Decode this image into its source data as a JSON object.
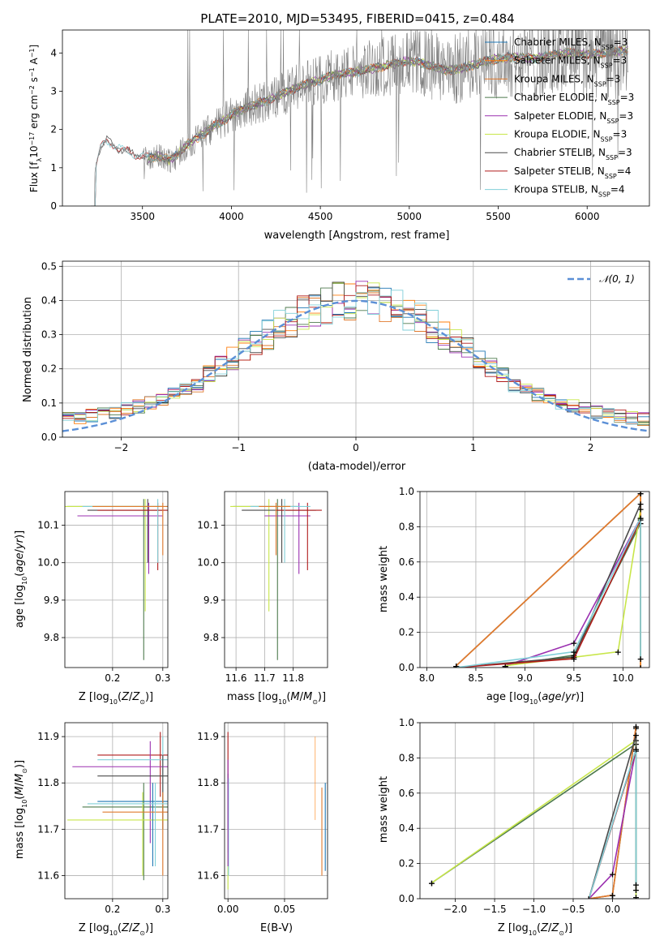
{
  "figure_title": "PLATE=2010, MJD=53495, FIBERID=0415, z=0.484",
  "colors": {
    "chabrier_miles": "#1f77b4",
    "salpeter_miles": "#ff7f0e",
    "kroupa_miles": "#e07a2e",
    "chabrier_elodie": "#4d7a4d",
    "salpeter_elodie": "#9b30b0",
    "kroupa_elodie": "#c8e64a",
    "chabrier_stelib": "#4a4a4a",
    "salpeter_stelib": "#b01c1c",
    "kroupa_stelib": "#80cfd8",
    "data_spectrum": "#808080",
    "normal": "#5b8fd6"
  },
  "chart_data": [
    {
      "id": "spectrum",
      "type": "line",
      "xlabel": "wavelength [Angstrom, rest frame]",
      "ylabel": "Flux [f$_\\lambda$10$^{-17}$ erg cm$^{-2}$ s$^{-1}$ A$^{-1}$]",
      "ylabel_parts": [
        "Flux [f",
        "λ",
        "10",
        "−17",
        " erg cm",
        "−2",
        " s",
        "−1",
        " A",
        "−1",
        "]"
      ],
      "xlim": [
        3050,
        6350
      ],
      "ylim": [
        0,
        4.6
      ],
      "xticks": [
        3500,
        4000,
        4500,
        5000,
        5500,
        6000
      ],
      "yticks": [
        0,
        1,
        2,
        3,
        4
      ],
      "legend_position": "top-right",
      "legend": [
        {
          "label": "Chabrier MILES, N",
          "sub": "SSP",
          "tail": "=3",
          "color_key": "chabrier_miles"
        },
        {
          "label": "Salpeter MILES, N",
          "sub": "SSP",
          "tail": "=3",
          "color_key": "salpeter_miles"
        },
        {
          "label": "Kroupa MILES, N",
          "sub": "SSP",
          "tail": "=3",
          "color_key": "kroupa_miles"
        },
        {
          "label": "Chabrier ELODIE, N",
          "sub": "SSP",
          "tail": "=3",
          "color_key": "chabrier_elodie"
        },
        {
          "label": "Salpeter ELODIE, N",
          "sub": "SSP",
          "tail": "=3",
          "color_key": "salpeter_elodie"
        },
        {
          "label": "Kroupa ELODIE, N",
          "sub": "SSP",
          "tail": "=3",
          "color_key": "kroupa_elodie"
        },
        {
          "label": "Chabrier STELIB, N",
          "sub": "SSP",
          "tail": "=3",
          "color_key": "chabrier_stelib"
        },
        {
          "label": "Salpeter STELIB, N",
          "sub": "SSP",
          "tail": "=4",
          "color_key": "salpeter_stelib"
        },
        {
          "label": "Kroupa STELIB, N",
          "sub": "SSP",
          "tail": "=4",
          "color_key": "kroupa_stelib"
        }
      ],
      "continuum": {
        "x": [
          3210,
          3235,
          3260,
          3300,
          3350,
          3400,
          3450,
          3500,
          3550,
          3600,
          3650,
          3700,
          3750,
          3800,
          3850,
          3900,
          3950,
          4000,
          4100,
          4200,
          4300,
          4400,
          4500,
          4600,
          4700,
          4800,
          4900,
          5000,
          5100,
          5200,
          5300,
          5400,
          5500,
          5600,
          5700,
          5800,
          5900,
          6000,
          6100,
          6200
        ],
        "y": [
          0,
          1.0,
          1.5,
          1.7,
          1.55,
          1.45,
          1.35,
          1.3,
          1.25,
          1.3,
          1.2,
          1.35,
          1.6,
          1.75,
          1.9,
          2.1,
          2.2,
          2.4,
          2.6,
          2.75,
          2.95,
          3.15,
          3.3,
          3.45,
          3.5,
          3.6,
          3.7,
          3.8,
          3.7,
          3.55,
          3.6,
          3.75,
          3.85,
          3.9,
          3.85,
          3.95,
          4.0,
          3.95,
          4.0,
          4.05
        ]
      }
    },
    {
      "id": "residuals",
      "type": "histogram",
      "xlabel": "(data-model)/error",
      "ylabel": "Normed distribution",
      "xlim": [
        -2.5,
        2.5
      ],
      "ylim": [
        0,
        0.515
      ],
      "xticks": [
        -2,
        -1,
        0,
        1,
        2
      ],
      "yticks": [
        0.0,
        0.1,
        0.2,
        0.3,
        0.4,
        0.5
      ],
      "grid": true,
      "legend_position": "top-right",
      "legend": [
        {
          "label": "𝒩(0, 1)",
          "color_key": "normal",
          "style": "dashed"
        }
      ],
      "bins": 50,
      "reference": {
        "mean": 0,
        "sigma": 1
      }
    },
    {
      "id": "age_vs_Z",
      "type": "scatter",
      "xlabel_parts": [
        "Z [log",
        "10",
        "(",
        "Z",
        "/",
        "Z",
        "⊙",
        ")]"
      ],
      "ylabel_parts": [
        "age  [log",
        "10",
        "(",
        "age",
        "/",
        "yr",
        ")]"
      ],
      "xlim": [
        0.105,
        0.31
      ],
      "ylim": [
        9.72,
        10.19
      ],
      "xticks": [
        0.2,
        0.3
      ],
      "yticks": [
        9.8,
        9.9,
        10.0,
        10.1
      ],
      "grid": true,
      "points": [
        {
          "c": "chabrier_miles",
          "x": 0.27,
          "y": 10.15
        },
        {
          "c": "salpeter_miles",
          "x": 0.275,
          "y": 10.14
        },
        {
          "c": "kroupa_miles",
          "x": 0.28,
          "y": 10.15
        },
        {
          "c": "chabrier_elodie",
          "x": 0.265,
          "y": 10.15
        },
        {
          "c": "salpeter_elodie",
          "x": 0.27,
          "y": 10.13
        },
        {
          "c": "kroupa_elodie",
          "x": 0.26,
          "y": 10.15
        },
        {
          "c": "chabrier_stelib",
          "x": 0.29,
          "y": 10.14
        },
        {
          "c": "salpeter_stelib",
          "x": 0.3,
          "y": 10.13
        },
        {
          "c": "kroupa_stelib",
          "x": 0.295,
          "y": 10.15
        }
      ]
    },
    {
      "id": "age_vs_mass",
      "type": "scatter",
      "xlabel_parts": [
        "mass [log",
        "10",
        "(",
        "M",
        "/",
        "M",
        "⊙",
        ")]"
      ],
      "xlim": [
        11.56,
        11.92
      ],
      "ylim": [
        9.72,
        10.19
      ],
      "xticks": [
        11.6,
        11.7,
        11.8
      ],
      "yticks": [
        9.8,
        9.9,
        10.0,
        10.1
      ],
      "grid": true
    },
    {
      "id": "mass_weight_vs_age",
      "type": "line",
      "xlabel_parts": [
        "age  [log",
        "10",
        "(",
        "age",
        "/",
        "yr",
        ")]"
      ],
      "ylabel": "mass weight",
      "xlim": [
        7.93,
        10.27
      ],
      "ylim": [
        0,
        1
      ],
      "xticks": [
        8.0,
        8.5,
        9.0,
        9.5,
        10.0
      ],
      "yticks": [
        0.0,
        0.2,
        0.4,
        0.6,
        0.8,
        1.0
      ],
      "grid": true,
      "series": [
        {
          "c": "chabrier_miles",
          "x": [
            8.3,
            10.18,
            10.18
          ],
          "y": [
            0.01,
            0.99,
            0.0
          ]
        },
        {
          "c": "salpeter_miles",
          "x": [
            8.3,
            10.18,
            10.18
          ],
          "y": [
            0.01,
            0.99,
            0.0
          ]
        },
        {
          "c": "kroupa_miles",
          "x": [
            8.3,
            10.18
          ],
          "y": [
            0.01,
            0.99
          ]
        },
        {
          "c": "chabrier_elodie",
          "x": [
            8.8,
            9.5,
            10.18
          ],
          "y": [
            0.01,
            0.07,
            0.82
          ]
        },
        {
          "c": "salpeter_elodie",
          "x": [
            8.8,
            9.5,
            10.18
          ],
          "y": [
            0.01,
            0.14,
            0.85
          ]
        },
        {
          "c": "kroupa_elodie",
          "x": [
            8.8,
            9.95,
            10.18
          ],
          "y": [
            0.01,
            0.09,
            0.9
          ]
        },
        {
          "c": "chabrier_stelib",
          "x": [
            8.3,
            9.5,
            10.18
          ],
          "y": [
            0.0,
            0.06,
            0.93
          ]
        },
        {
          "c": "salpeter_stelib",
          "x": [
            8.3,
            9.5,
            10.18
          ],
          "y": [
            0.0,
            0.05,
            0.84
          ]
        },
        {
          "c": "kroupa_stelib",
          "x": [
            8.3,
            9.5,
            10.18,
            10.18
          ],
          "y": [
            0.0,
            0.09,
            0.85,
            0.05
          ]
        }
      ]
    },
    {
      "id": "mass_vs_Z",
      "type": "scatter",
      "xlabel_parts": [
        "Z [log",
        "10",
        "(",
        "Z",
        "/",
        "Z",
        "⊙",
        ")]"
      ],
      "ylabel_parts": [
        "mass [log",
        "10",
        "(",
        "M",
        "/",
        "M",
        "⊙",
        ")]"
      ],
      "xlim": [
        0.105,
        0.31
      ],
      "ylim": [
        11.55,
        11.93
      ],
      "xticks": [
        0.2,
        0.3
      ],
      "yticks": [
        11.6,
        11.7,
        11.8,
        11.9
      ],
      "grid": true
    },
    {
      "id": "mass_vs_ebv",
      "type": "scatter",
      "xlabel": "E(B-V)",
      "xlim": [
        -0.003,
        0.088
      ],
      "ylim": [
        11.55,
        11.93
      ],
      "xticks": [
        0.0,
        0.05
      ],
      "yticks": [
        11.6,
        11.7,
        11.8,
        11.9
      ],
      "grid": true
    },
    {
      "id": "mass_weight_vs_Z",
      "type": "line",
      "xlabel_parts": [
        "Z [log",
        "10",
        "(",
        "Z",
        "/",
        "Z",
        "⊙",
        ")]"
      ],
      "ylabel": "mass weight",
      "xlim": [
        -2.45,
        0.47
      ],
      "ylim": [
        0,
        1
      ],
      "xticks": [
        -2.0,
        -1.5,
        -1.0,
        -0.5,
        0.0
      ],
      "yticks": [
        0.0,
        0.2,
        0.4,
        0.6,
        0.8,
        1.0
      ],
      "grid": true,
      "series": [
        {
          "c": "chabrier_miles",
          "x": [
            -0.3,
            0.0,
            0.3
          ],
          "y": [
            0.0,
            0.02,
            0.97
          ]
        },
        {
          "c": "salpeter_miles",
          "x": [
            -0.3,
            0.0,
            0.3
          ],
          "y": [
            0.0,
            0.02,
            0.98
          ]
        },
        {
          "c": "kroupa_miles",
          "x": [
            -0.3,
            0.0,
            0.3
          ],
          "y": [
            0.0,
            0.02,
            0.98
          ]
        },
        {
          "c": "chabrier_elodie",
          "x": [
            -2.3,
            0.3
          ],
          "y": [
            0.09,
            0.88
          ]
        },
        {
          "c": "salpeter_elodie",
          "x": [
            -0.3,
            0.0,
            0.3
          ],
          "y": [
            0.0,
            0.14,
            0.85
          ]
        },
        {
          "c": "kroupa_elodie",
          "x": [
            -2.3,
            0.3,
            0.3
          ],
          "y": [
            0.09,
            0.9,
            0.01
          ]
        },
        {
          "c": "chabrier_stelib",
          "x": [
            -0.3,
            0.3,
            0.3
          ],
          "y": [
            0.0,
            0.93,
            0.05
          ]
        },
        {
          "c": "salpeter_stelib",
          "x": [
            -0.3,
            0.3
          ],
          "y": [
            0.0,
            0.84
          ]
        },
        {
          "c": "kroupa_stelib",
          "x": [
            -0.3,
            0.3,
            0.3
          ],
          "y": [
            0.0,
            0.85,
            0.08
          ]
        }
      ]
    }
  ]
}
